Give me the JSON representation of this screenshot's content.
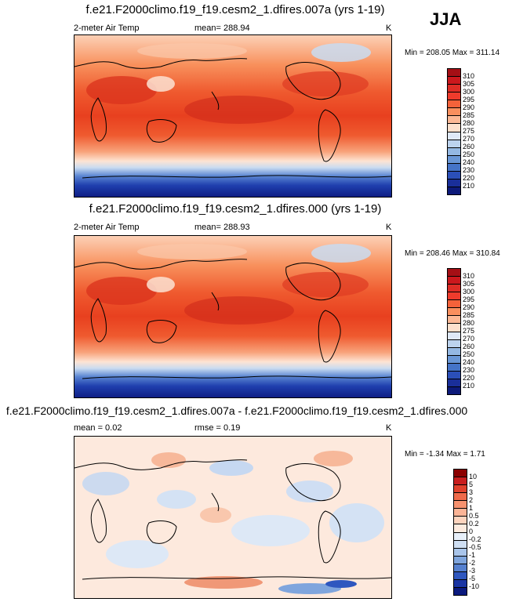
{
  "season": "JJA",
  "panels": [
    {
      "title": "f.e21.F2000climo.f19_f19.cesm2_1.dfires.007a (yrs 1-19)",
      "left_label": "2-meter Air Temp",
      "center_label": "mean= 288.94",
      "units": "K",
      "minmax": "Min = 208.05 Max = 311.14",
      "colorbar_labels": [
        "310",
        "305",
        "300",
        "295",
        "290",
        "285",
        "280",
        "275",
        "270",
        "260",
        "250",
        "240",
        "230",
        "220",
        "210"
      ],
      "colorbar_colors": [
        "#a50f15",
        "#cb181d",
        "#de2d26",
        "#ef3b2c",
        "#f4623a",
        "#f98f5e",
        "#fcb895",
        "#fde0cc",
        "#dfe9f7",
        "#bcd3ee",
        "#94b8e3",
        "#6a97d6",
        "#4574c8",
        "#2b4fb8",
        "#1a2f9a",
        "#0d1a7a"
      ]
    },
    {
      "title": "f.e21.F2000climo.f19_f19.cesm2_1.dfires.000 (yrs 1-19)",
      "left_label": "2-meter Air Temp",
      "center_label": "mean= 288.93",
      "units": "K",
      "minmax": "Min = 208.46 Max = 310.84",
      "colorbar_labels": [
        "310",
        "305",
        "300",
        "295",
        "290",
        "285",
        "280",
        "275",
        "270",
        "260",
        "250",
        "240",
        "230",
        "220",
        "210"
      ],
      "colorbar_colors": [
        "#a50f15",
        "#cb181d",
        "#de2d26",
        "#ef3b2c",
        "#f4623a",
        "#f98f5e",
        "#fcb895",
        "#fde0cc",
        "#dfe9f7",
        "#bcd3ee",
        "#94b8e3",
        "#6a97d6",
        "#4574c8",
        "#2b4fb8",
        "#1a2f9a",
        "#0d1a7a"
      ]
    },
    {
      "title": "f.e21.F2000climo.f19_f19.cesm2_1.dfires.007a - f.e21.F2000climo.f19_f19.cesm2_1.dfires.000",
      "left_label": "mean =   0.02",
      "center_label": "rmse =   0.19",
      "units": "K",
      "minmax": "Min =  -1.34 Max =   1.71",
      "colorbar_labels": [
        "10",
        "5",
        "3",
        "2",
        "1",
        "0.5",
        "0.2",
        "0",
        "-0.2",
        "-0.5",
        "-1",
        "-2",
        "-3",
        "-5",
        "-10"
      ],
      "colorbar_colors": [
        "#8b0000",
        "#c81e1e",
        "#e0412c",
        "#ef6a4a",
        "#f7926f",
        "#fbb496",
        "#fdd4be",
        "#fdebdf",
        "#e8f0fa",
        "#cfdff3",
        "#a9c5ea",
        "#7fa5dd",
        "#5580cf",
        "#2f57bf",
        "#1a35a3",
        "#0b1a7e"
      ]
    }
  ]
}
